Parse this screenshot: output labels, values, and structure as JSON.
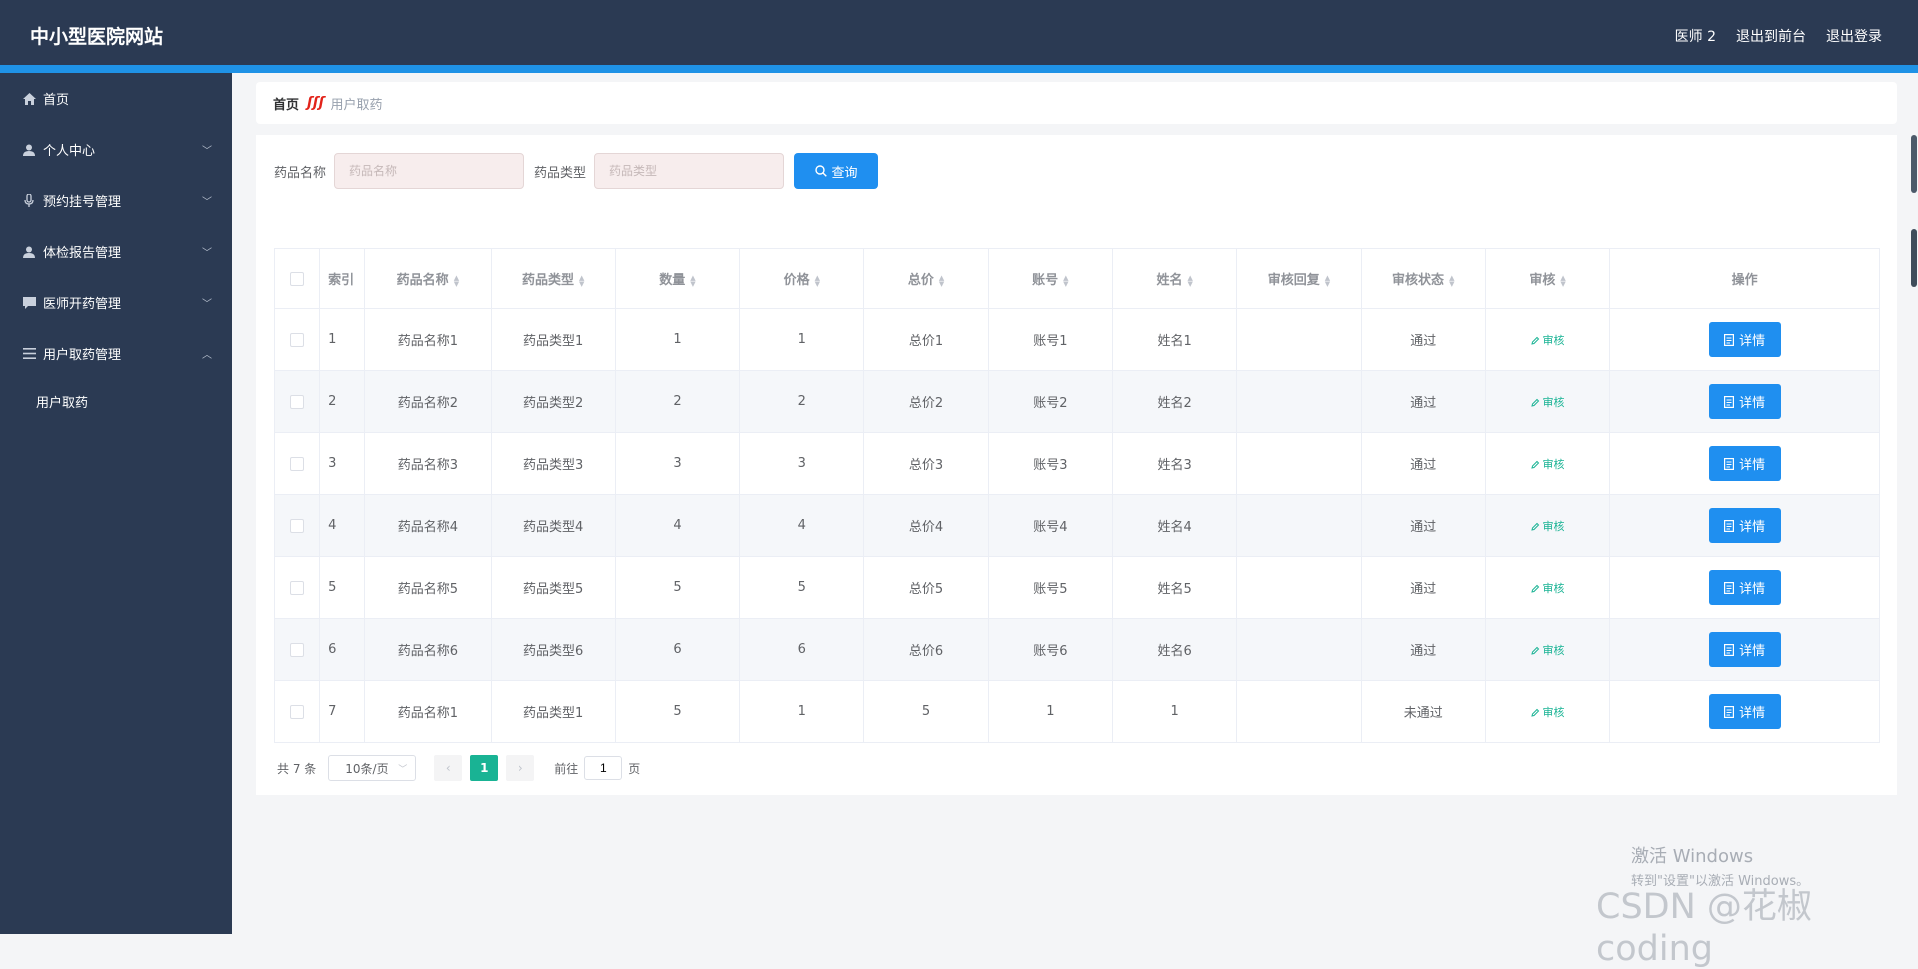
{
  "app": {
    "title": "中小型医院网站",
    "user_label": "医师 2",
    "back_front": "退出到前台",
    "logout": "退出登录"
  },
  "sidebar": {
    "items": [
      {
        "label": "首页",
        "icon": "home-icon"
      },
      {
        "label": "个人中心",
        "icon": "user-icon"
      },
      {
        "label": "预约挂号管理",
        "icon": "microphone-icon"
      },
      {
        "label": "体检报告管理",
        "icon": "user-icon"
      },
      {
        "label": "医师开药管理",
        "icon": "chat-icon"
      },
      {
        "label": "用户取药管理",
        "icon": "menu-icon"
      }
    ],
    "subitems": [
      {
        "label": "用户取药"
      }
    ]
  },
  "breadcrumb": {
    "home": "首页",
    "separator": "ʃʃʃ",
    "current": "用户取药"
  },
  "search": {
    "name_label": "药品名称",
    "name_placeholder": "药品名称",
    "type_label": "药品类型",
    "type_placeholder": "药品类型",
    "query_label": "查询"
  },
  "table": {
    "headers": {
      "index": "索引",
      "name": "药品名称",
      "type": "药品类型",
      "qty": "数量",
      "price": "价格",
      "total": "总价",
      "account": "账号",
      "person": "姓名",
      "reply": "审核回复",
      "status": "审核状态",
      "audit": "审核",
      "actions": "操作"
    },
    "rows": [
      {
        "index": "1",
        "name": "药品名称1",
        "type": "药品类型1",
        "qty": "1",
        "price": "1",
        "total": "总价1",
        "account": "账号1",
        "person": "姓名1",
        "reply": "",
        "status": "通过",
        "audit": "审核",
        "detail": "详情"
      },
      {
        "index": "2",
        "name": "药品名称2",
        "type": "药品类型2",
        "qty": "2",
        "price": "2",
        "total": "总价2",
        "account": "账号2",
        "person": "姓名2",
        "reply": "",
        "status": "通过",
        "audit": "审核",
        "detail": "详情"
      },
      {
        "index": "3",
        "name": "药品名称3",
        "type": "药品类型3",
        "qty": "3",
        "price": "3",
        "total": "总价3",
        "account": "账号3",
        "person": "姓名3",
        "reply": "",
        "status": "通过",
        "audit": "审核",
        "detail": "详情"
      },
      {
        "index": "4",
        "name": "药品名称4",
        "type": "药品类型4",
        "qty": "4",
        "price": "4",
        "total": "总价4",
        "account": "账号4",
        "person": "姓名4",
        "reply": "",
        "status": "通过",
        "audit": "审核",
        "detail": "详情"
      },
      {
        "index": "5",
        "name": "药品名称5",
        "type": "药品类型5",
        "qty": "5",
        "price": "5",
        "total": "总价5",
        "account": "账号5",
        "person": "姓名5",
        "reply": "",
        "status": "通过",
        "audit": "审核",
        "detail": "详情"
      },
      {
        "index": "6",
        "name": "药品名称6",
        "type": "药品类型6",
        "qty": "6",
        "price": "6",
        "total": "总价6",
        "account": "账号6",
        "person": "姓名6",
        "reply": "",
        "status": "通过",
        "audit": "审核",
        "detail": "详情"
      },
      {
        "index": "7",
        "name": "药品名称1",
        "type": "药品类型1",
        "qty": "5",
        "price": "1",
        "total": "5",
        "account": "1",
        "person": "1",
        "reply": "",
        "status": "未通过",
        "audit": "审核",
        "detail": "详情"
      }
    ]
  },
  "pagination": {
    "total_text": "共 7 条",
    "page_size": "10条/页",
    "current_page": "1",
    "goto_label": "前往",
    "goto_value": "1",
    "page_suffix": "页"
  },
  "watermarks": {
    "windows_line1": "激活 Windows",
    "windows_line2": "转到\"设置\"以激活 Windows。",
    "csdn": "CSDN @花椒coding"
  },
  "colors": {
    "header_bg": "#2b3a53",
    "accent": "#1f92e6",
    "primary_button": "#1f8ff0",
    "teal": "#19b394"
  }
}
